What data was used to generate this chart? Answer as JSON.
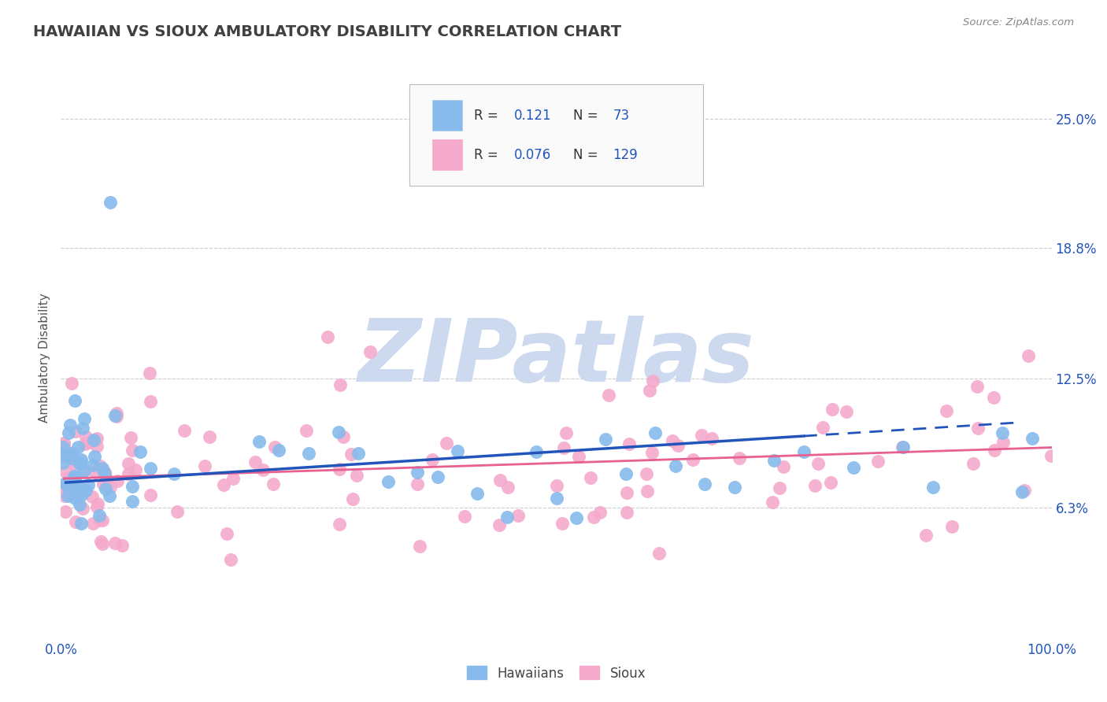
{
  "title": "HAWAIIAN VS SIOUX AMBULATORY DISABILITY CORRELATION CHART",
  "source_text": "Source: ZipAtlas.com",
  "ylabel": "Ambulatory Disability",
  "xlim": [
    0.0,
    100.0
  ],
  "ylim": [
    0.0,
    27.0
  ],
  "ytick_vals": [
    6.3,
    12.5,
    18.8,
    25.0
  ],
  "ytick_labels": [
    "6.3%",
    "12.5%",
    "18.8%",
    "25.0%"
  ],
  "background_color": "#ffffff",
  "grid_color": "#cccccc",
  "title_color": "#404040",
  "title_fontsize": 14,
  "watermark_text": "ZIPatlas",
  "watermark_color": "#ccd9ee",
  "legend_r1_text": "R =  0.121",
  "legend_n1_text": "N =  73",
  "legend_r2_text": "R = 0.076",
  "legend_n2_text": "N = 129",
  "legend_text_color": "#2255bb",
  "hawaiian_color": "#87bbec",
  "sioux_color": "#f5aacc",
  "hawaiian_line_color": "#2255bb",
  "sioux_line_color": "#e86090",
  "axis_value_color": "#2255bb",
  "ylabel_color": "#555555",
  "source_color": "#888888"
}
